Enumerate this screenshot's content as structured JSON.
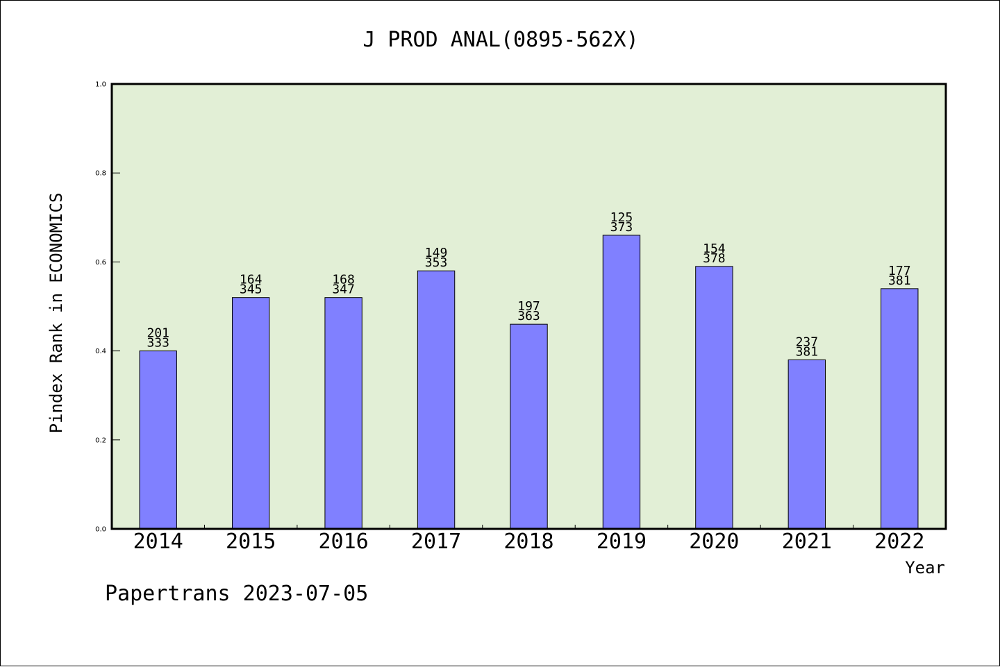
{
  "chart_data": {
    "type": "bar",
    "title": "J PROD ANAL(0895-562X)",
    "xlabel": "Year",
    "ylabel": "Pindex Rank in ECONOMICS",
    "ylim": [
      0,
      1.0
    ],
    "yticks": [
      "0.0",
      "0.2",
      "0.4",
      "0.6",
      "0.8",
      "1.0"
    ],
    "categories": [
      "2014",
      "2015",
      "2016",
      "2017",
      "2018",
      "2019",
      "2020",
      "2021",
      "2022"
    ],
    "values": [
      0.4,
      0.52,
      0.52,
      0.58,
      0.46,
      0.66,
      0.59,
      0.38,
      0.54
    ],
    "rank": [
      "201",
      "164",
      "168",
      "149",
      "197",
      "125",
      "154",
      "237",
      "177"
    ],
    "total": [
      "333",
      "345",
      "347",
      "353",
      "363",
      "373",
      "378",
      "381",
      "381"
    ],
    "grid": false,
    "plot_background": "#e2efd6",
    "bar_color": "#8080ff",
    "footer": "Papertrans 2023-07-05"
  }
}
